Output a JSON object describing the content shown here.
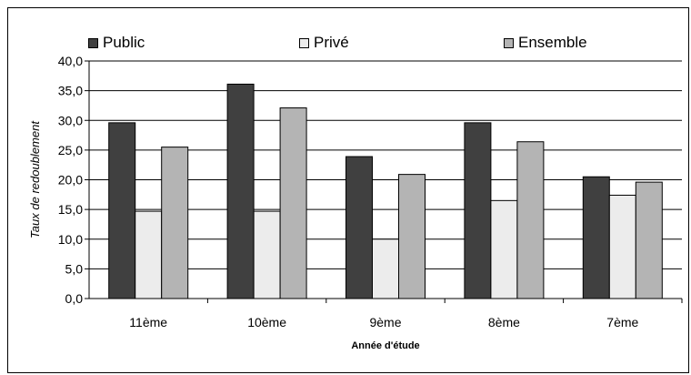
{
  "chart_data": {
    "type": "bar",
    "categories": [
      "11ème",
      "10ème",
      "9ème",
      "8ème",
      "7ème"
    ],
    "series": [
      {
        "name": "Public",
        "color": "#404040",
        "values": [
          29.6,
          36.1,
          23.9,
          29.6,
          20.5
        ]
      },
      {
        "name": "Privé",
        "color": "#ececec",
        "values": [
          14.7,
          14.7,
          10.0,
          16.5,
          17.4
        ]
      },
      {
        "name": "Ensemble",
        "color": "#b4b4b4",
        "values": [
          25.5,
          32.1,
          20.9,
          26.4,
          19.6
        ]
      }
    ],
    "xlabel": "Année d'étude",
    "ylabel": "Taux de redoublement",
    "ylim": [
      0,
      40
    ],
    "ytick_step": 5,
    "ytick_labels": [
      "0,0",
      "5,0",
      "10,0",
      "15,0",
      "20,0",
      "25,0",
      "30,0",
      "35,0",
      "40,0"
    ],
    "grid": true,
    "legend_position": "top"
  }
}
